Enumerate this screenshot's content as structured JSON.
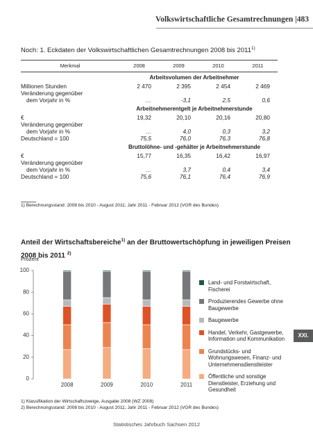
{
  "header": "Volkswirtschaftliche Gesamtrechnungen |483",
  "table": {
    "title": "Noch: 1. Eckdaten der Volkswirtschaftlichen Gesamtrechnungen 2008 bis 2011",
    "title_note": "1)",
    "columns": [
      "Merkmal",
      "2008",
      "2009",
      "2010",
      "2011"
    ],
    "sections": [
      {
        "heading": "Arbeitsvolumen der Arbeitnehmer",
        "rows": [
          {
            "label": [
              "Millionen Stunden"
            ],
            "values": [
              "2 470",
              "2 395",
              "2 454",
              "2 469"
            ],
            "italic": false
          },
          {
            "label": [
              "Veränderung gegenüber",
              "dem Vorjahr in %"
            ],
            "values": [
              "…",
              "-3,1",
              "2,5",
              "0,6"
            ],
            "italic": true
          }
        ]
      },
      {
        "heading": "Arbeitnehmerentgelt je Arbeitnehmerstunde",
        "rows": [
          {
            "label": [
              "€"
            ],
            "values": [
              "19,32",
              "20,10",
              "20,16",
              "20,80"
            ],
            "italic": false
          },
          {
            "label": [
              "Veränderung gegenüber",
              "dem Vorjahr in %"
            ],
            "values": [
              "…",
              "4,0",
              "0,3",
              "3,2"
            ],
            "italic": true
          },
          {
            "label": [
              "Deutschland = 100"
            ],
            "values": [
              "75,5",
              "76,0",
              "76,3",
              "76,8"
            ],
            "italic": true
          }
        ]
      },
      {
        "heading": "Bruttolöhne- und -gehälter je Arbeitnehmerstunde",
        "rows": [
          {
            "label": [
              "€"
            ],
            "values": [
              "15,77",
              "16,35",
              "16,42",
              "16,97"
            ],
            "italic": false
          },
          {
            "label": [
              "Veränderung gegenüber",
              "dem Vorjahr in %"
            ],
            "values": [
              "…",
              "3,7",
              "0,4",
              "3,4"
            ],
            "italic": true
          },
          {
            "label": [
              "Deutschland = 100"
            ],
            "values": [
              "75,6",
              "76,1",
              "76,4",
              "76,9"
            ],
            "italic": true
          }
        ]
      }
    ],
    "footnote": "1) Berechnungsstand: 2008 bis 2010 - August 2011; Jahr 2011 - Februar 2012 (VGR des Bundes)"
  },
  "chart_data": {
    "type": "stacked-bar",
    "title": "Anteil der Wirtschaftsbereiche",
    "title_note": "1)",
    "title_cont": " an der Bruttowertschöpfung in jeweiligen Preisen",
    "subtitle": "2008 bis 2011",
    "subtitle_note": "2)",
    "y_label": "Prozent",
    "categories": [
      "2008",
      "2009",
      "2010",
      "2011"
    ],
    "series": [
      {
        "name": "Land- und Forstwirtschaft, Fischerei",
        "color": "#1f5a3d",
        "values": [
          1,
          1,
          1,
          1
        ]
      },
      {
        "name": "Produzierendes Gewerbe ohne Baugewerbe",
        "color": "#76787a",
        "values": [
          26,
          24,
          26,
          26
        ]
      },
      {
        "name": "Baugewerbe",
        "color": "#b8b9bb",
        "values": [
          6,
          6,
          6,
          6
        ]
      },
      {
        "name": "Handel, Verkehr, Gastgewerbe, Information und Kommunikation",
        "color": "#df5228",
        "values": [
          17,
          17,
          17,
          17
        ]
      },
      {
        "name": "Grundstücks- und Wohnungswesen, Finanz- und Unternehmensdienstleister",
        "color": "#ec8450",
        "values": [
          23,
          23,
          22,
          23
        ]
      },
      {
        "name": "Öffentliche und sonstige Dienstleister, Erziehung und Gesundheit",
        "color": "#f5ac80",
        "values": [
          27,
          29,
          28,
          27
        ]
      }
    ],
    "ylim": [
      0,
      100
    ],
    "yticks": [
      0,
      20,
      40,
      60,
      80,
      100
    ]
  },
  "chart_footnotes": [
    "1) Klassifikation der Wirtschaftszweige, Ausgabe 2008 (WZ 2008)",
    "2) Berechnungsstand: 2008 bis 2010 - August 2011; Jahr 2011 - Februar 2012 (VGR des Bundes)"
  ],
  "side_tab": "XXI.",
  "footer": "Statistisches Jahrbuch Sachsen 2012"
}
